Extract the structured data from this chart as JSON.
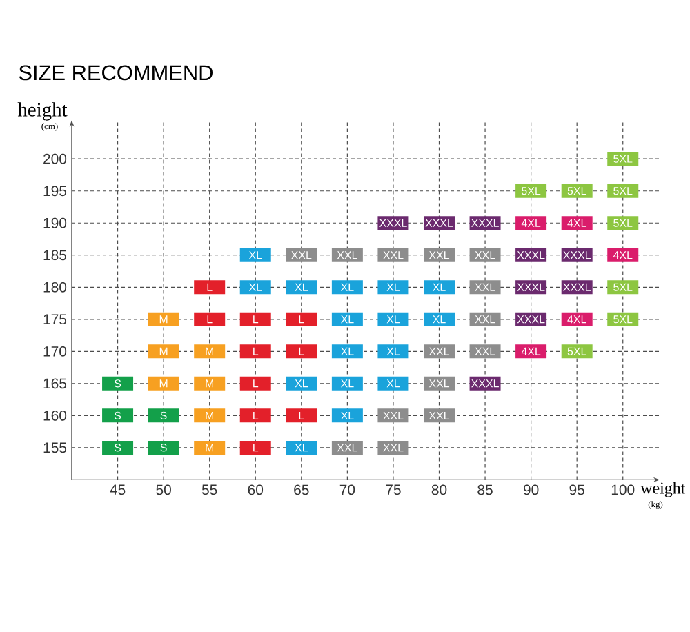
{
  "chart_data": {
    "type": "scatter",
    "title": "SIZE RECOMMEND",
    "xlabel": "weight",
    "ylabel": "height",
    "annotations": [
      "(kg)",
      "(cm)"
    ],
    "xlim": [
      40,
      104
    ],
    "ylim": [
      150,
      206
    ],
    "xticks": [
      45,
      50,
      55,
      60,
      65,
      70,
      75,
      80,
      85,
      90,
      95,
      100
    ],
    "yticks": [
      155,
      160,
      165,
      170,
      175,
      180,
      185,
      190,
      195,
      200
    ],
    "grid": true,
    "marker": "square",
    "series": [
      {
        "name": "S",
        "color": "#13a04a",
        "x": [
          45,
          45,
          45,
          50,
          50
        ],
        "values": [
          165,
          160,
          155,
          160,
          155
        ]
      },
      {
        "name": "M",
        "color": "#f7a021",
        "x": [
          50,
          50,
          50,
          55,
          55,
          55,
          55
        ],
        "values": [
          175,
          170,
          165,
          170,
          165,
          160,
          155
        ]
      },
      {
        "name": "L",
        "color": "#e3202a",
        "x": [
          55,
          55,
          60,
          65,
          60,
          65,
          60,
          60,
          65,
          60
        ],
        "values": [
          180,
          175,
          175,
          175,
          170,
          170,
          165,
          160,
          160,
          155
        ]
      },
      {
        "name": "XL",
        "color": "#1aa3db",
        "x": [
          60,
          60,
          65,
          70,
          75,
          80,
          70,
          75,
          80,
          70,
          75,
          65,
          70,
          75,
          70,
          65
        ],
        "values": [
          185,
          180,
          180,
          180,
          180,
          180,
          175,
          175,
          175,
          170,
          170,
          165,
          165,
          165,
          160,
          155
        ]
      },
      {
        "name": "XXL",
        "color": "#8d8d8d",
        "x": [
          65,
          70,
          75,
          80,
          85,
          85,
          85,
          80,
          85,
          80,
          75,
          80,
          70,
          75
        ],
        "values": [
          185,
          185,
          185,
          185,
          185,
          180,
          175,
          170,
          170,
          165,
          160,
          160,
          155,
          155
        ]
      },
      {
        "name": "XXXL",
        "color": "#6b2a6e",
        "x": [
          75,
          80,
          85,
          90,
          95,
          90,
          95,
          90,
          85
        ],
        "values": [
          190,
          190,
          190,
          185,
          185,
          180,
          180,
          175,
          165
        ]
      },
      {
        "name": "4XL",
        "color": "#da1d6b",
        "x": [
          90,
          95,
          100,
          95,
          90
        ],
        "values": [
          190,
          190,
          185,
          175,
          170
        ]
      },
      {
        "name": "5XL",
        "color": "#8dc641",
        "x": [
          100,
          90,
          95,
          100,
          100,
          100,
          100,
          95
        ],
        "values": [
          200,
          195,
          195,
          195,
          190,
          180,
          175,
          170
        ]
      }
    ]
  }
}
